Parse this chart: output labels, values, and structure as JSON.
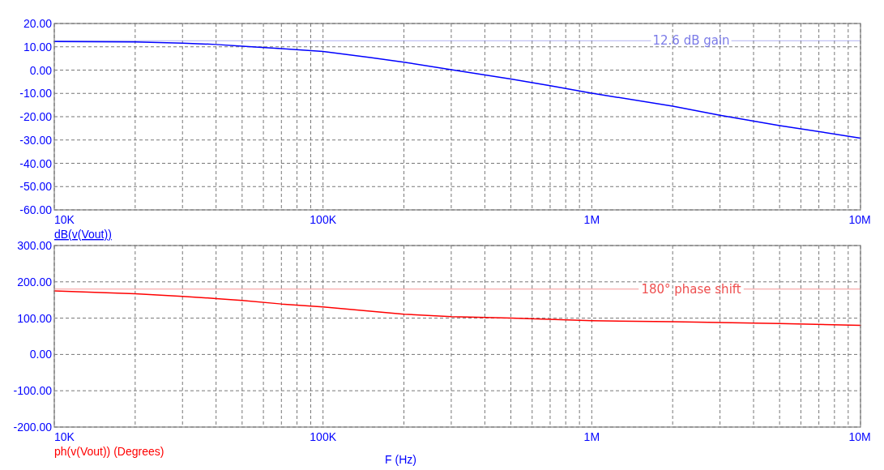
{
  "chart_data": [
    {
      "type": "line",
      "log": "x",
      "grid": true,
      "legend": "bottom left",
      "line_style": "solid",
      "xlim": [
        10000,
        10000000
      ],
      "xticks": [
        {
          "value": 10000,
          "label": "10K"
        },
        {
          "value": 20000,
          "label": null
        },
        {
          "value": 30000,
          "label": null
        },
        {
          "value": 40000,
          "label": null
        },
        {
          "value": 50000,
          "label": null
        },
        {
          "value": 60000,
          "label": null
        },
        {
          "value": 70000,
          "label": null
        },
        {
          "value": 80000,
          "label": null
        },
        {
          "value": 90000,
          "label": null
        },
        {
          "value": 100000,
          "label": "100K"
        },
        {
          "value": 200000,
          "label": null
        },
        {
          "value": 300000,
          "label": null
        },
        {
          "value": 400000,
          "label": null
        },
        {
          "value": 500000,
          "label": null
        },
        {
          "value": 600000,
          "label": null
        },
        {
          "value": 700000,
          "label": null
        },
        {
          "value": 800000,
          "label": null
        },
        {
          "value": 900000,
          "label": null
        },
        {
          "value": 1000000,
          "label": "1M"
        },
        {
          "value": 2000000,
          "label": null
        },
        {
          "value": 3000000,
          "label": null
        },
        {
          "value": 4000000,
          "label": null
        },
        {
          "value": 5000000,
          "label": null
        },
        {
          "value": 6000000,
          "label": null
        },
        {
          "value": 7000000,
          "label": null
        },
        {
          "value": 8000000,
          "label": null
        },
        {
          "value": 9000000,
          "label": null
        },
        {
          "value": 10000000,
          "label": "10M"
        }
      ],
      "ylim": [
        -60,
        20
      ],
      "yticks": [
        {
          "value": -60,
          "label": "-60.00"
        },
        {
          "value": -50,
          "label": "-50.00"
        },
        {
          "value": -40,
          "label": "-40.00"
        },
        {
          "value": -30,
          "label": "-30.00"
        },
        {
          "value": -20,
          "label": "-20.00"
        },
        {
          "value": -10,
          "label": "-10.00"
        },
        {
          "value": 0,
          "label": "0.00"
        },
        {
          "value": 10,
          "label": "10.00"
        },
        {
          "value": 20,
          "label": "20.00"
        }
      ],
      "ref_lines": [
        {
          "axis": "y",
          "value": 12.6,
          "label": "12.6 dB gain",
          "color": "#7b7be8"
        }
      ],
      "series": [
        {
          "name": "dB(v(Vout))",
          "color": "#0000ff",
          "x": [
            10000,
            20000,
            30000,
            40000,
            50000,
            70000,
            100000,
            150000,
            200000,
            300000,
            500000,
            700000,
            1000000,
            2000000,
            3000000,
            5000000,
            10000000
          ],
          "values": [
            12.3,
            12.1,
            11.6,
            11.0,
            10.3,
            9.2,
            8.0,
            5.4,
            3.4,
            0.2,
            -3.8,
            -6.7,
            -9.9,
            -15.5,
            -19.4,
            -23.8,
            -29.2
          ]
        }
      ]
    },
    {
      "type": "line",
      "log": "x",
      "grid": true,
      "legend": "bottom left",
      "line_style": "solid",
      "xlabel": "F (Hz)",
      "xlim": [
        10000,
        10000000
      ],
      "xticks": [
        {
          "value": 10000,
          "label": "10K"
        },
        {
          "value": 20000,
          "label": null
        },
        {
          "value": 30000,
          "label": null
        },
        {
          "value": 40000,
          "label": null
        },
        {
          "value": 50000,
          "label": null
        },
        {
          "value": 60000,
          "label": null
        },
        {
          "value": 70000,
          "label": null
        },
        {
          "value": 80000,
          "label": null
        },
        {
          "value": 90000,
          "label": null
        },
        {
          "value": 100000,
          "label": "100K"
        },
        {
          "value": 200000,
          "label": null
        },
        {
          "value": 300000,
          "label": null
        },
        {
          "value": 400000,
          "label": null
        },
        {
          "value": 500000,
          "label": null
        },
        {
          "value": 600000,
          "label": null
        },
        {
          "value": 700000,
          "label": null
        },
        {
          "value": 800000,
          "label": null
        },
        {
          "value": 900000,
          "label": null
        },
        {
          "value": 1000000,
          "label": "1M"
        },
        {
          "value": 2000000,
          "label": null
        },
        {
          "value": 3000000,
          "label": null
        },
        {
          "value": 4000000,
          "label": null
        },
        {
          "value": 5000000,
          "label": null
        },
        {
          "value": 6000000,
          "label": null
        },
        {
          "value": 7000000,
          "label": null
        },
        {
          "value": 8000000,
          "label": null
        },
        {
          "value": 9000000,
          "label": null
        },
        {
          "value": 10000000,
          "label": "10M"
        }
      ],
      "ylim": [
        -200,
        300
      ],
      "yticks": [
        {
          "value": -200,
          "label": "-200.00"
        },
        {
          "value": -100,
          "label": "-100.00"
        },
        {
          "value": 0,
          "label": "0.00"
        },
        {
          "value": 100,
          "label": "100.00"
        },
        {
          "value": 200,
          "label": "200.00"
        },
        {
          "value": 300,
          "label": "300.00"
        }
      ],
      "ref_lines": [
        {
          "axis": "y",
          "value": 180,
          "label": "180° phase shift",
          "color": "#ee5050"
        }
      ],
      "series": [
        {
          "name": "ph(v(Vout)) (Degrees)",
          "color": "#ff0000",
          "x": [
            10000,
            20000,
            30000,
            40000,
            50000,
            70000,
            100000,
            200000,
            300000,
            500000,
            1000000,
            2000000,
            3000000,
            5000000,
            10000000
          ],
          "values": [
            175,
            167,
            160,
            154,
            149,
            139,
            131,
            111,
            104,
            100,
            93,
            90,
            88,
            85,
            80
          ]
        }
      ]
    }
  ]
}
